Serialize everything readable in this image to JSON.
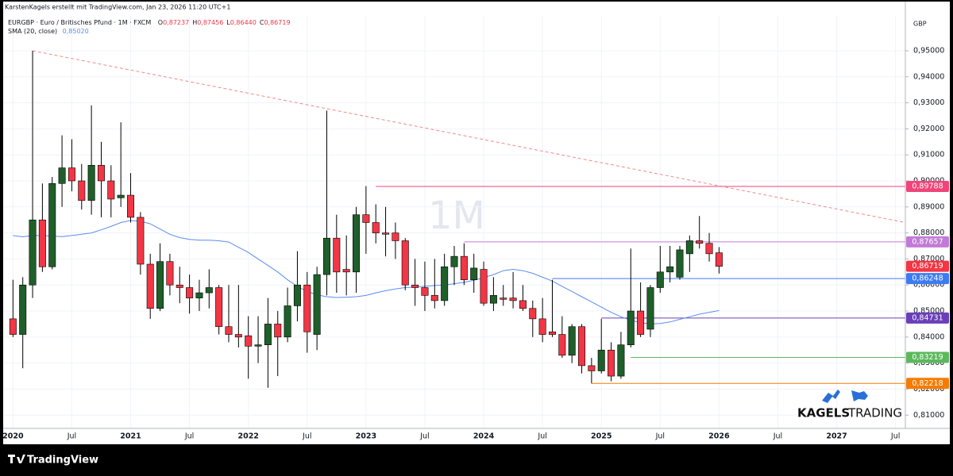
{
  "header": {
    "credit": "KarstenKagels erstellt mit TradingView.com, Jan 23, 2026 11:20 UTC+1",
    "symbol": "EURGBP · Euro / Britisches Pfund · 1M · FXCM",
    "ohlc": [
      {
        "key": "O",
        "value": "0,87237"
      },
      {
        "key": "H",
        "value": "0,87456"
      },
      {
        "key": "L",
        "value": "0,86440"
      },
      {
        "key": "C",
        "value": "0,86719"
      }
    ],
    "indicator_value": "0,85020"
  },
  "watermark": "1M",
  "logo": {
    "brand": "KAGELS",
    "suffix": "TRADING"
  },
  "footer": "TradingView",
  "chart_data": {
    "type": "candlestick",
    "currency": "GBP",
    "x": [
      "2020-01",
      "2020-02",
      "2020-03",
      "2020-04",
      "2020-05",
      "2020-06",
      "2020-07",
      "2020-08",
      "2020-09",
      "2020-10",
      "2020-11",
      "2020-12",
      "2021-01",
      "2021-02",
      "2021-03",
      "2021-04",
      "2021-05",
      "2021-06",
      "2021-07",
      "2021-08",
      "2021-09",
      "2021-10",
      "2021-11",
      "2021-12",
      "2022-01",
      "2022-02",
      "2022-03",
      "2022-04",
      "2022-05",
      "2022-06",
      "2022-07",
      "2022-08",
      "2022-09",
      "2022-10",
      "2022-11",
      "2022-12",
      "2023-01",
      "2023-02",
      "2023-03",
      "2023-04",
      "2023-05",
      "2023-06",
      "2023-07",
      "2023-08",
      "2023-09",
      "2023-10",
      "2023-11",
      "2023-12",
      "2024-01",
      "2024-02",
      "2024-03",
      "2024-04",
      "2024-05",
      "2024-06",
      "2024-07",
      "2024-08",
      "2024-09",
      "2024-10",
      "2024-11",
      "2024-12",
      "2025-01",
      "2025-02",
      "2025-03",
      "2025-04",
      "2025-05",
      "2025-06",
      "2025-07",
      "2025-08",
      "2025-09",
      "2025-10",
      "2025-11",
      "2025-12",
      "2026-01"
    ],
    "open": [
      0.847,
      0.841,
      0.86,
      0.885,
      0.867,
      0.899,
      0.905,
      0.9,
      0.8925,
      0.906,
      0.9,
      0.8935,
      0.8945,
      0.886,
      0.868,
      0.851,
      0.869,
      0.86,
      0.859,
      0.855,
      0.857,
      0.859,
      0.844,
      0.841,
      0.8405,
      0.8365,
      0.837,
      0.845,
      0.84,
      0.852,
      0.86,
      0.841,
      0.864,
      0.878,
      0.866,
      0.865,
      0.887,
      0.884,
      0.88,
      0.88,
      0.877,
      0.86,
      0.859,
      0.856,
      0.854,
      0.867,
      0.871,
      0.862,
      0.866,
      0.853,
      0.855,
      0.855,
      0.854,
      0.851,
      0.847,
      0.842,
      0.841,
      0.833,
      0.844,
      0.829,
      0.827,
      0.835,
      0.825,
      0.837,
      0.85,
      0.843,
      0.859,
      0.865,
      0.863,
      0.872,
      0.877,
      0.876,
      0.87237
    ],
    "high": [
      0.862,
      0.863,
      0.95,
      0.899,
      0.9015,
      0.9175,
      0.916,
      0.9065,
      0.929,
      0.915,
      0.906,
      0.9225,
      0.903,
      0.888,
      0.872,
      0.876,
      0.872,
      0.867,
      0.864,
      0.862,
      0.866,
      0.86,
      0.86,
      0.86,
      0.848,
      0.848,
      0.855,
      0.85,
      0.859,
      0.873,
      0.865,
      0.867,
      0.927,
      0.887,
      0.879,
      0.89,
      0.898,
      0.891,
      0.89,
      0.884,
      0.878,
      0.87,
      0.869,
      0.87,
      0.872,
      0.875,
      0.876,
      0.872,
      0.869,
      0.863,
      0.86,
      0.865,
      0.86,
      0.854,
      0.855,
      0.862,
      0.848,
      0.845,
      0.845,
      0.832,
      0.847,
      0.838,
      0.842,
      0.874,
      0.861,
      0.86,
      0.875,
      0.875,
      0.875,
      0.879,
      0.8865,
      0.88,
      0.87456
    ],
    "low": [
      0.84,
      0.828,
      0.855,
      0.865,
      0.866,
      0.89,
      0.896,
      0.889,
      0.887,
      0.886,
      0.886,
      0.89,
      0.884,
      0.864,
      0.847,
      0.85,
      0.856,
      0.853,
      0.849,
      0.85,
      0.851,
      0.841,
      0.838,
      0.836,
      0.824,
      0.83,
      0.8205,
      0.825,
      0.838,
      0.846,
      0.834,
      0.835,
      0.856,
      0.857,
      0.856,
      0.857,
      0.872,
      0.876,
      0.871,
      0.87,
      0.858,
      0.852,
      0.85,
      0.851,
      0.852,
      0.86,
      0.86,
      0.857,
      0.852,
      0.85,
      0.852,
      0.851,
      0.85,
      0.84,
      0.838,
      0.84,
      0.832,
      0.83,
      0.826,
      0.8222,
      0.826,
      0.823,
      0.824,
      0.836,
      0.84,
      0.84,
      0.857,
      0.861,
      0.862,
      0.865,
      0.874,
      0.869,
      0.8644
    ],
    "close": [
      0.841,
      0.86,
      0.885,
      0.867,
      0.899,
      0.905,
      0.9,
      0.8925,
      0.906,
      0.9,
      0.893,
      0.8945,
      0.886,
      0.868,
      0.851,
      0.869,
      0.86,
      0.859,
      0.855,
      0.857,
      0.859,
      0.844,
      0.841,
      0.84,
      0.8365,
      0.837,
      0.845,
      0.84,
      0.852,
      0.86,
      0.842,
      0.864,
      0.878,
      0.865,
      0.865,
      0.887,
      0.884,
      0.88,
      0.8795,
      0.877,
      0.86,
      0.859,
      0.856,
      0.854,
      0.867,
      0.871,
      0.862,
      0.8665,
      0.853,
      0.856,
      0.8545,
      0.854,
      0.851,
      0.847,
      0.841,
      0.841,
      0.833,
      0.844,
      0.829,
      0.827,
      0.835,
      0.825,
      0.837,
      0.85,
      0.841,
      0.859,
      0.865,
      0.867,
      0.8735,
      0.877,
      0.876,
      0.872,
      0.86719
    ],
    "up_color": "#1f5f2a",
    "down_color": "#f23645",
    "wick_color": "#000000",
    "series": [
      {
        "name": "SMA (20, close)",
        "color": "#5b8def",
        "values": [
          0.879,
          0.8785,
          0.879,
          0.879,
          0.8788,
          0.8786,
          0.879,
          0.8795,
          0.88,
          0.8812,
          0.8825,
          0.884,
          0.8848,
          0.8845,
          0.8835,
          0.8815,
          0.8795,
          0.8782,
          0.8775,
          0.8772,
          0.8772,
          0.877,
          0.8765,
          0.8745,
          0.8725,
          0.87,
          0.8675,
          0.865,
          0.862,
          0.8595,
          0.8575,
          0.8562,
          0.8555,
          0.8552,
          0.8553,
          0.8555,
          0.856,
          0.857,
          0.8578,
          0.8585,
          0.859,
          0.8592,
          0.8595,
          0.8598,
          0.86,
          0.8605,
          0.861,
          0.8618,
          0.8628,
          0.864,
          0.8655,
          0.866,
          0.8655,
          0.8645,
          0.863,
          0.8615,
          0.8595,
          0.8575,
          0.8555,
          0.8535,
          0.8515,
          0.8495,
          0.8478,
          0.8465,
          0.8455,
          0.845,
          0.8452,
          0.8458,
          0.8468,
          0.8478,
          0.8488,
          0.8495,
          0.8502
        ]
      }
    ],
    "levels": [
      {
        "x": "2023-02",
        "value": 0.89788,
        "label": "0,89788",
        "color": "#f0457a"
      },
      {
        "x": "2023-11",
        "value": 0.87657,
        "label": "0,87657",
        "color": "#c17bd6"
      },
      {
        "x": "2024-08",
        "value": 0.86248,
        "label": "0,86248",
        "color": "#3d7bf5"
      },
      {
        "x": "2025-01",
        "value": 0.84731,
        "label": "0,84731",
        "color": "#6a3fb8"
      },
      {
        "x": "2025-04",
        "value": 0.83219,
        "label": "0,83219",
        "color": "#5cb85c"
      },
      {
        "x": "2024-12",
        "value": 0.82218,
        "label": "0,82218",
        "color": "#f57c00"
      }
    ],
    "last_price": {
      "value": 0.86719,
      "label": "0,86719",
      "color": "#f23645"
    },
    "trendline": {
      "x": [
        "2020-03",
        "2027-08"
      ],
      "values": [
        0.95,
        0.884
      ],
      "color": "#f08a8a"
    },
    "xlim": [
      "2019-12",
      "2027-08"
    ],
    "xticks": [
      {
        "value": "2020-01",
        "label": "2020"
      },
      {
        "value": "2020-07",
        "label": "Jul"
      },
      {
        "value": "2021-01",
        "label": "2021"
      },
      {
        "value": "2021-07",
        "label": "Jul"
      },
      {
        "value": "2022-01",
        "label": "2022"
      },
      {
        "value": "2022-07",
        "label": "Jul"
      },
      {
        "value": "2023-01",
        "label": "2023"
      },
      {
        "value": "2023-07",
        "label": "Jul"
      },
      {
        "value": "2024-01",
        "label": "2024"
      },
      {
        "value": "2024-07",
        "label": "Jul"
      },
      {
        "value": "2025-01",
        "label": "2025"
      },
      {
        "value": "2025-07",
        "label": "Jul"
      },
      {
        "value": "2026-01",
        "label": "2026"
      },
      {
        "value": "2026-07",
        "label": "Jul"
      },
      {
        "value": "2027-01",
        "label": "2027"
      },
      {
        "value": "2027-07",
        "label": "Jul"
      }
    ],
    "ylim": [
      0.8049,
      0.9634
    ],
    "yticks": [
      {
        "value": 0.81,
        "label": "0,81000"
      },
      {
        "value": 0.82,
        "label": "0,82000"
      },
      {
        "value": 0.83,
        "label": "0,83000"
      },
      {
        "value": 0.84,
        "label": "0,84000"
      },
      {
        "value": 0.85,
        "label": "0,85000"
      },
      {
        "value": 0.86,
        "label": "0,86000"
      },
      {
        "value": 0.87,
        "label": "0,87000"
      },
      {
        "value": 0.88,
        "label": "0,88000"
      },
      {
        "value": 0.89,
        "label": "0,89000"
      },
      {
        "value": 0.9,
        "label": "0,90000"
      },
      {
        "value": 0.91,
        "label": "0,91000"
      },
      {
        "value": 0.92,
        "label": "0,92000"
      },
      {
        "value": 0.93,
        "label": "0,93000"
      },
      {
        "value": 0.94,
        "label": "0,94000"
      },
      {
        "value": 0.95,
        "label": "0,95000"
      }
    ],
    "grid": true
  }
}
